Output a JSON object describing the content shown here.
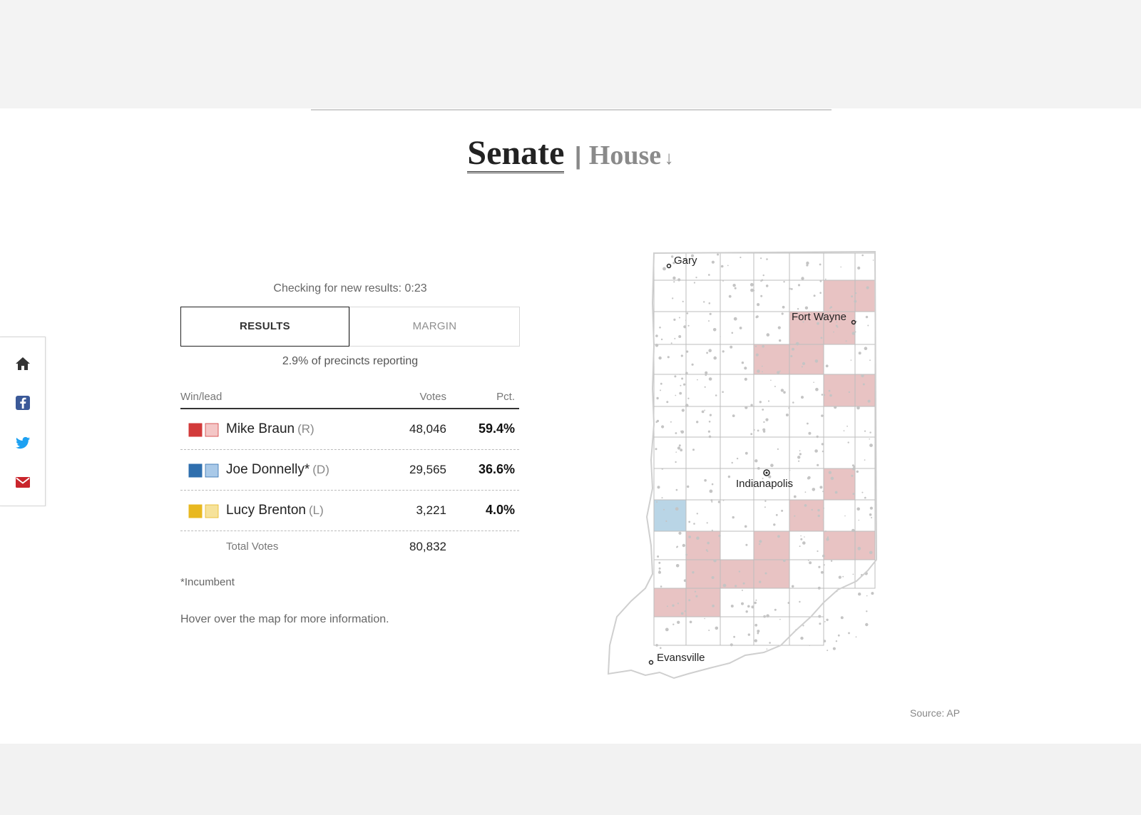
{
  "header": {
    "senate_label": "Senate",
    "separator": "|",
    "house_label": "House",
    "house_arrow": "↓"
  },
  "share": {
    "items": [
      {
        "icon": "home-icon",
        "color": "#333333"
      },
      {
        "icon": "facebook-icon",
        "color": "#3b5998"
      },
      {
        "icon": "twitter-icon",
        "color": "#1da1f2"
      },
      {
        "icon": "email-icon",
        "color": "#c9252c"
      }
    ]
  },
  "status": {
    "checking_text": "Checking for new results: 0:23",
    "reporting_text": "2.9% of precincts reporting"
  },
  "tabs": {
    "results_label": "RESULTS",
    "margin_label": "MARGIN"
  },
  "table": {
    "headers": {
      "winlead": "Win/lead",
      "votes": "Votes",
      "pct": "Pct."
    },
    "rows": [
      {
        "name": "Mike Braun",
        "party": "(R)",
        "votes": "48,046",
        "pct": "59.4%",
        "color": "#d23a3a",
        "light": "#f4c6c6"
      },
      {
        "name": "Joe Donnelly*",
        "party": "(D)",
        "votes": "29,565",
        "pct": "36.6%",
        "color": "#2f6fae",
        "light": "#a9c9e8"
      },
      {
        "name": "Lucy Brenton",
        "party": "(L)",
        "votes": "3,221",
        "pct": "4.0%",
        "color": "#e8b820",
        "light": "#f6e29a"
      }
    ],
    "total_label": "Total Votes",
    "total_votes": "80,832"
  },
  "notes": {
    "incumbent": "*Incumbent",
    "hover": "Hover over the map for more information."
  },
  "map": {
    "cities": {
      "gary": "Gary",
      "fort_wayne": "Fort Wayne",
      "indianapolis": "Indianapolis",
      "evansville": "Evansville"
    },
    "colors": {
      "rep": "#e8c3c3",
      "dem": "#b9d5e6",
      "none": "#ffffff"
    }
  },
  "source": "Source: AP"
}
